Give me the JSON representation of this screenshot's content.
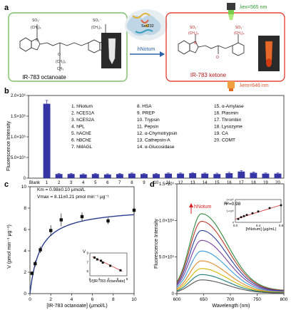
{
  "panel_labels": [
    "a",
    "b",
    "c",
    "d"
  ],
  "panel_a": {
    "substrate_name": "IR-783 octanoate",
    "product_name": "IR-783 ketone",
    "enzyme_label": "hNotum",
    "active_site_label": "Ser232",
    "excitation": "λex=565 nm",
    "emission": "λem=646 nm",
    "colors": {
      "substrate_box": "#7cc26a",
      "product_box": "#e8463a",
      "arrow": "#2b5fa8",
      "ser_label": "#1a1a1a"
    }
  },
  "chart_data": [
    {
      "panel": "b",
      "type": "bar",
      "ylabel": "Fluorescence Intensity",
      "categories": [
        "Blank",
        "1",
        "2",
        "3",
        "4",
        "5",
        "6",
        "7",
        "8",
        "9",
        "10",
        "11",
        "12",
        "13",
        "14",
        "15",
        "16",
        "17",
        "18",
        "19",
        "20"
      ],
      "values": [
        0,
        1800000,
        100000,
        100000,
        90000,
        100000,
        90000,
        100000,
        110000,
        100000,
        100000,
        110000,
        110000,
        120000,
        110000,
        100000,
        120000,
        160000,
        130000,
        110000,
        110000
      ],
      "errors": [
        0,
        80000,
        15000,
        15000,
        15000,
        15000,
        15000,
        15000,
        15000,
        15000,
        15000,
        15000,
        15000,
        15000,
        15000,
        20000,
        20000,
        25000,
        20000,
        15000,
        15000
      ],
      "yticks": [
        "0",
        "5.0×10⁵",
        "1.0×10⁶",
        "1.5×10⁶",
        "2.0×10⁶"
      ],
      "ylim": [
        0,
        2000000
      ],
      "bar_color": "#3535a6",
      "legend_columns": [
        [
          "1. hNotum",
          "2. hCES1A",
          "3. hCES2A",
          "4. hPL",
          "5. hAChE",
          "6. hBChE",
          "7. hMAGL"
        ],
        [
          "8. HSA",
          "9. PREP",
          "10. Trypsin",
          "11. Pepsin",
          "12. α-Chymotrypsin",
          "13. Cathepsin-A",
          "14. α-Glucosidase"
        ],
        [
          "15. α-Amylase",
          "16. Plasmin",
          "17. Thrombin",
          "18. Lysozyme",
          "19. CA",
          "20. COMT"
        ]
      ]
    },
    {
      "panel": "c",
      "type": "scatter",
      "xlabel": "[IR-783 octanoate] (μmol/L)",
      "ylabel": "V (pmol min⁻¹ μg⁻¹)",
      "xlim": [
        0,
        10
      ],
      "ylim": [
        0,
        10
      ],
      "xticks": [
        0,
        2,
        4,
        6,
        8,
        10
      ],
      "yticks": [
        0,
        2,
        4,
        6,
        8,
        10
      ],
      "points": [
        {
          "x": 0.2,
          "y": 1.9,
          "err": 0.2
        },
        {
          "x": 0.5,
          "y": 2.8,
          "err": 0.3
        },
        {
          "x": 1.0,
          "y": 4.1,
          "err": 0.3
        },
        {
          "x": 2.0,
          "y": 5.9,
          "err": 0.5
        },
        {
          "x": 3.0,
          "y": 6.9,
          "err": 0.6
        },
        {
          "x": 5.0,
          "y": 7.2,
          "err": 0.4
        },
        {
          "x": 7.5,
          "y": 6.8,
          "err": 0.3
        },
        {
          "x": 10.0,
          "y": 7.8,
          "err": 0.3
        }
      ],
      "fit": {
        "Km": 0.98,
        "Vmax": 8.11
      },
      "fit_color": "#2a3c8e",
      "annotation_km": "Km = 0.98±0.10 μmol/L",
      "annotation_vmax": "Vmax = 8.11±0.21 pmol min⁻¹ μg⁻¹",
      "inset": {
        "type": "scatter",
        "xlabel": "V/[IR-783 octanoate]",
        "ylabel": "V",
        "xlim": [
          0,
          8
        ],
        "ylim": [
          4,
          9
        ],
        "xticks": [
          0,
          2,
          4,
          6,
          8
        ],
        "yticks": [
          5,
          7,
          9
        ],
        "points": [
          {
            "x": 1,
            "y": 8.0
          },
          {
            "x": 1.6,
            "y": 7.6
          },
          {
            "x": 2.4,
            "y": 7.3
          },
          {
            "x": 2.8,
            "y": 6.9
          },
          {
            "x": 4.4,
            "y": 6.2
          },
          {
            "x": 6.6,
            "y": 5.2
          }
        ],
        "line": [
          {
            "x": 0.5,
            "y": 8.2
          },
          {
            "x": 7,
            "y": 5.0
          }
        ],
        "line_color": "#d64541"
      }
    },
    {
      "panel": "d",
      "type": "line",
      "xlabel": "Wavelength (nm)",
      "ylabel": "Fluorescence Intensity",
      "xlim": [
        600,
        800
      ],
      "ylim": [
        0,
        1500000
      ],
      "xticks": [
        600,
        650,
        700,
        750,
        800
      ],
      "yticks": [
        "0",
        "5.0×10⁵",
        "1.0×10⁶",
        "1.5×10⁶"
      ],
      "peak_x": 646,
      "series_peaks": [
        1050000,
        950000,
        830000,
        700000,
        560000,
        430000,
        330000,
        250000,
        180000
      ],
      "series_colors": [
        "#2e8b3e",
        "#c0392b",
        "#2c3e9e",
        "#7b3fa0",
        "#3a9ad9",
        "#e08a2a",
        "#d4b800",
        "#1a7a7a",
        "#555555"
      ],
      "annotation": "hNotum",
      "annotation_color": "#d62020",
      "inset": {
        "type": "scatter",
        "xlabel": "[hNotum] (μg/mL)",
        "ylabel": "F",
        "annotation": "R²=0.98",
        "xlim": [
          0,
          0.8
        ],
        "ylim": [
          0,
          2000000
        ],
        "xticks": [
          0.0,
          0.4,
          0.8
        ],
        "yticks": [
          "0",
          "1×10⁶",
          "2×10⁶"
        ],
        "points": [
          {
            "x": 0.05,
            "y": 300000
          },
          {
            "x": 0.1,
            "y": 450000
          },
          {
            "x": 0.15,
            "y": 550000
          },
          {
            "x": 0.2,
            "y": 650000
          },
          {
            "x": 0.3,
            "y": 800000
          },
          {
            "x": 0.4,
            "y": 950000
          },
          {
            "x": 0.6,
            "y": 1250000
          },
          {
            "x": 0.8,
            "y": 1500000
          }
        ],
        "line": [
          {
            "x": 0.0,
            "y": 280000
          },
          {
            "x": 0.8,
            "y": 1520000
          }
        ],
        "line_color": "#d64541"
      }
    }
  ]
}
